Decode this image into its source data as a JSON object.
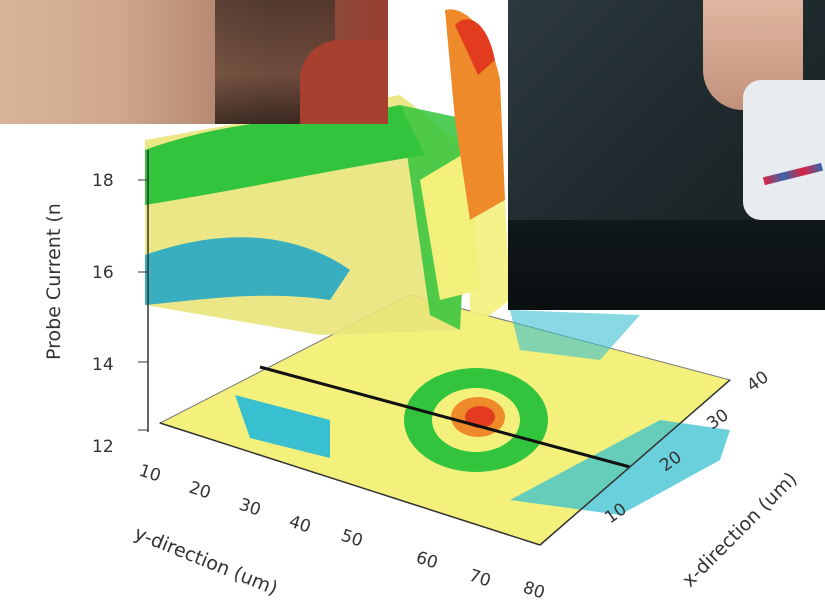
{
  "chart_data": {
    "type": "surface",
    "zlabel": "Probe Current (n",
    "xlabel": "y-direction (um)",
    "ylabel": "x-direction (um)",
    "z_ticks": [
      "18",
      "16",
      "14",
      "12"
    ],
    "x_ticks": [
      "10",
      "20",
      "30",
      "40",
      "50",
      "60",
      "70",
      "80"
    ],
    "y_ticks": [
      "10",
      "20",
      "30",
      "40"
    ],
    "peak": {
      "y_direction_um": 60,
      "x_direction_um": 25,
      "z": 19.5
    },
    "colors": {
      "low": "#38c0d0",
      "mid": "#f3f17c",
      "green": "#33c43d",
      "high": "#e23b1d",
      "orange": "#ee8a2a"
    }
  }
}
